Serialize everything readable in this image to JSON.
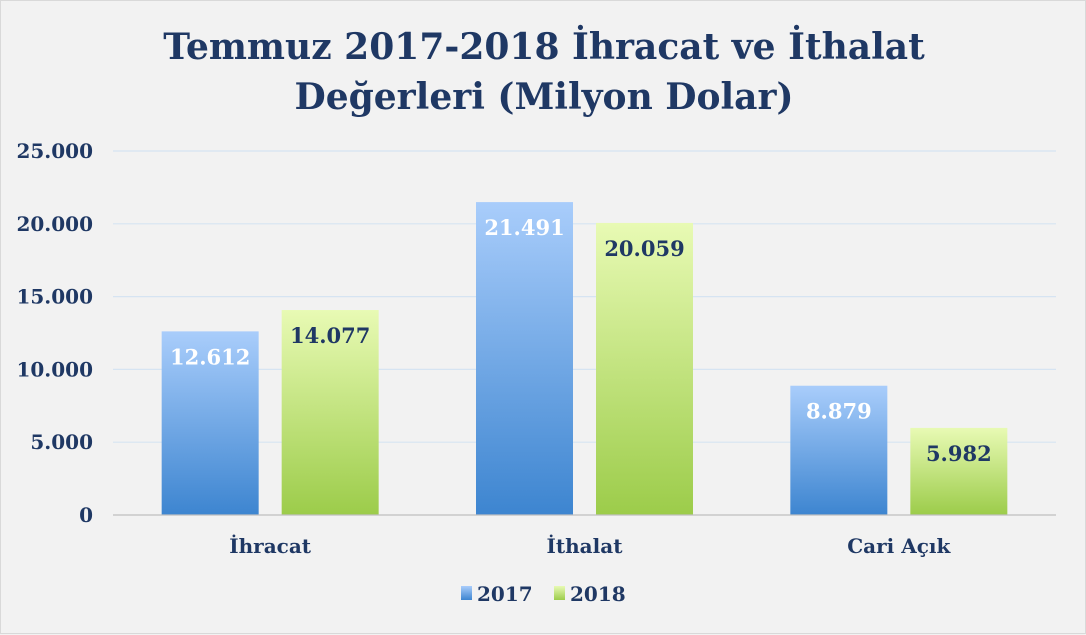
{
  "chart_data": {
    "type": "bar",
    "title_lines": [
      "Temmuz 2017-2018 İhracat ve İthalat",
      "Değerleri (Milyon Dolar)"
    ],
    "categories": [
      "İhracat",
      "İthalat",
      "Cari Açık"
    ],
    "series": [
      {
        "name": "2017",
        "values": [
          12612,
          21491,
          8879
        ],
        "labels": [
          "12.612",
          "21.491",
          "8.879"
        ],
        "color_top": "#a9cdfb",
        "color_bottom": "#3d85d0",
        "label_color": "#ffffff"
      },
      {
        "name": "2018",
        "values": [
          14077,
          20059,
          5982
        ],
        "labels": [
          "14.077",
          "20.059",
          "5.982"
        ],
        "color_top": "#e8fab4",
        "color_bottom": "#9ccc4a",
        "label_color": "#1f3864"
      }
    ],
    "yticks": [
      "0",
      "5.000",
      "10.000",
      "15.000",
      "20.000",
      "25.000"
    ],
    "ylim": [
      0,
      25000
    ],
    "grid": true,
    "legend": "bottom"
  }
}
